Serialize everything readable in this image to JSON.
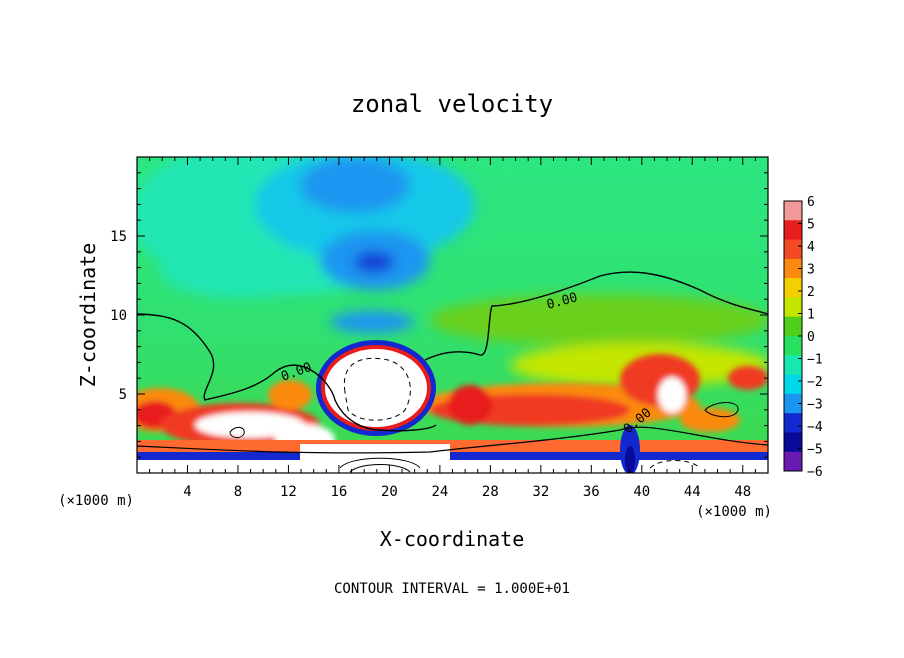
{
  "chart_data": {
    "type": "heatmap",
    "title": "zonal velocity",
    "xlabel": "X-coordinate",
    "ylabel": "Z-coordinate",
    "x_unit": "(×1000 m)",
    "x_unit_right": "(×1000 m)",
    "x_ticks": [
      4,
      8,
      12,
      16,
      20,
      24,
      28,
      32,
      36,
      40,
      44,
      48
    ],
    "y_ticks": [
      5,
      10,
      15
    ],
    "xlim": [
      0,
      50
    ],
    "ylim": [
      0,
      20
    ],
    "colorbar": {
      "ticks": [
        6,
        5,
        4,
        3,
        2,
        1,
        0,
        -1,
        -2,
        -3,
        -4,
        -5,
        -6
      ],
      "colors": [
        "#f29a9a",
        "#e81e1e",
        "#f24a24",
        "#fa8a10",
        "#f5d000",
        "#c4e600",
        "#50d01a",
        "#28e060",
        "#18e8b0",
        "#00d8e8",
        "#1a96f0",
        "#1428d0",
        "#0a0a98",
        "#6a1ab0"
      ]
    },
    "contour_label": "0.00",
    "contour_label_values": [
      0.0,
      0.0,
      0.0,
      0.0
    ],
    "footer": "CONTOUR INTERVAL = 1.000E+01"
  }
}
